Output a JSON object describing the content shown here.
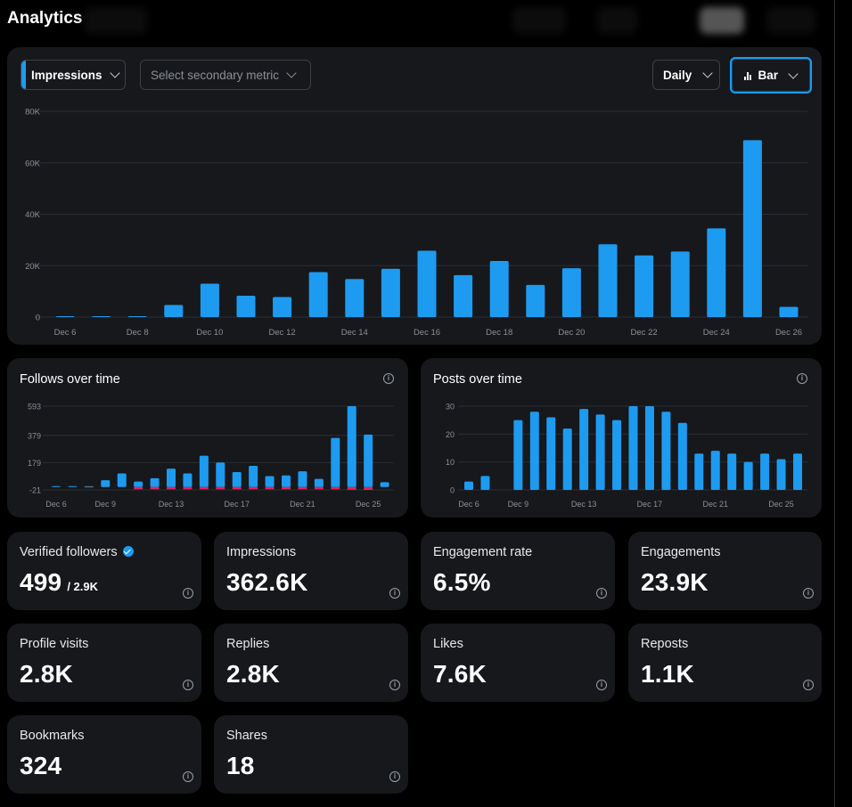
{
  "page": {
    "title": "Analytics"
  },
  "controls": {
    "primary_metric": "Impressions",
    "secondary_metric_placeholder": "Select secondary metric",
    "interval": "Daily",
    "chart_type": "Bar"
  },
  "colors": {
    "accent": "#1d9bf0",
    "negative": "#e0245e",
    "card": "#16181c",
    "background": "#000000"
  },
  "chart_data": [
    {
      "type": "bar",
      "title": "",
      "categories": [
        "Dec 6",
        "Dec 7",
        "Dec 8",
        "Dec 9",
        "Dec 10",
        "Dec 11",
        "Dec 12",
        "Dec 13",
        "Dec 14",
        "Dec 15",
        "Dec 16",
        "Dec 17",
        "Dec 18",
        "Dec 19",
        "Dec 20",
        "Dec 21",
        "Dec 22",
        "Dec 23",
        "Dec 24",
        "Dec 25",
        "Dec 26"
      ],
      "x_tick_labels": [
        "Dec 6",
        "Dec 8",
        "Dec 10",
        "Dec 12",
        "Dec 14",
        "Dec 16",
        "Dec 18",
        "Dec 20",
        "Dec 22",
        "Dec 24",
        "Dec 26"
      ],
      "values": [
        200,
        300,
        250,
        4700,
        13000,
        8300,
        7800,
        17500,
        14800,
        18800,
        25800,
        16300,
        21800,
        12500,
        19000,
        28300,
        24000,
        25500,
        34500,
        68800,
        4000
      ],
      "y_ticks": [
        "0",
        "20K",
        "40K",
        "60K",
        "80K"
      ],
      "ylim": [
        0,
        80000
      ],
      "grid": true
    },
    {
      "type": "bar",
      "title": "Follows over time",
      "categories": [
        "Dec 6",
        "Dec 7",
        "Dec 8",
        "Dec 9",
        "Dec 10",
        "Dec 11",
        "Dec 12",
        "Dec 13",
        "Dec 14",
        "Dec 15",
        "Dec 16",
        "Dec 17",
        "Dec 18",
        "Dec 19",
        "Dec 20",
        "Dec 21",
        "Dec 22",
        "Dec 23",
        "Dec 24",
        "Dec 25",
        "Dec 26"
      ],
      "x_tick_labels": [
        "Dec 6",
        "Dec 9",
        "Dec 13",
        "Dec 17",
        "Dec 21",
        "Dec 25"
      ],
      "values": [
        5,
        3,
        0,
        50,
        100,
        40,
        65,
        135,
        100,
        230,
        180,
        110,
        155,
        80,
        85,
        115,
        60,
        360,
        593,
        385,
        35
      ],
      "negative_values": [
        0,
        0,
        0,
        0,
        0,
        -3,
        -4,
        -7,
        -7,
        -8,
        -8,
        -8,
        -8,
        -8,
        -8,
        -10,
        -10,
        -12,
        -20,
        -21,
        0
      ],
      "y_ticks": [
        "-21",
        "179",
        "379",
        "593"
      ],
      "ylim": [
        -21,
        593
      ],
      "grid": true
    },
    {
      "type": "bar",
      "title": "Posts over time",
      "categories": [
        "Dec 6",
        "Dec 7",
        "Dec 8",
        "Dec 9",
        "Dec 10",
        "Dec 11",
        "Dec 12",
        "Dec 13",
        "Dec 14",
        "Dec 15",
        "Dec 16",
        "Dec 17",
        "Dec 18",
        "Dec 19",
        "Dec 20",
        "Dec 21",
        "Dec 22",
        "Dec 23",
        "Dec 24",
        "Dec 25",
        "Dec 26"
      ],
      "x_tick_labels": [
        "Dec 6",
        "Dec 9",
        "Dec 13",
        "Dec 17",
        "Dec 21",
        "Dec 25"
      ],
      "values": [
        3,
        5,
        0,
        25,
        28,
        26,
        22,
        29,
        27,
        25,
        30,
        30,
        28,
        24,
        13,
        14,
        13,
        10,
        13,
        11,
        13
      ],
      "y_ticks": [
        "0",
        "10",
        "20",
        "30"
      ],
      "ylim": [
        0,
        30
      ],
      "grid": true
    }
  ],
  "stats": [
    {
      "label": "Verified followers",
      "value": "499",
      "sub": "/ 2.9K",
      "verified": true
    },
    {
      "label": "Impressions",
      "value": "362.6K"
    },
    {
      "label": "Engagement rate",
      "value": "6.5%"
    },
    {
      "label": "Engagements",
      "value": "23.9K"
    },
    {
      "label": "Profile visits",
      "value": "2.8K"
    },
    {
      "label": "Replies",
      "value": "2.8K"
    },
    {
      "label": "Likes",
      "value": "7.6K"
    },
    {
      "label": "Reposts",
      "value": "1.1K"
    },
    {
      "label": "Bookmarks",
      "value": "324"
    },
    {
      "label": "Shares",
      "value": "18"
    }
  ]
}
